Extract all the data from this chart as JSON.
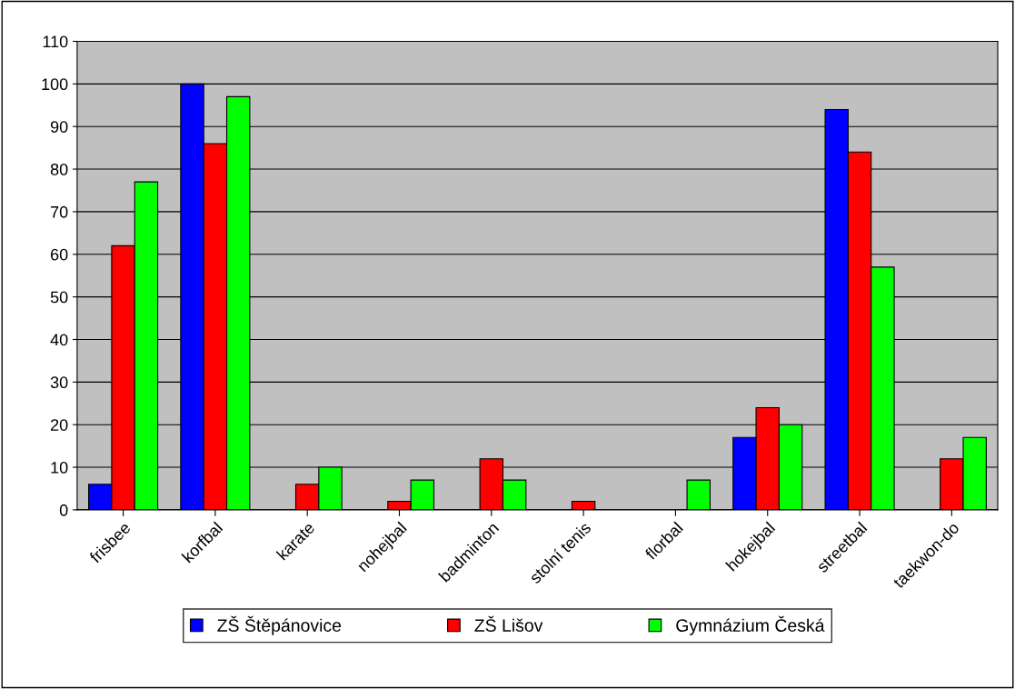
{
  "chart_data": {
    "type": "bar",
    "categories": [
      "frisbee",
      "korfbal",
      "karate",
      "nohejbal",
      "badminton",
      "stolní tenis",
      "florbal",
      "hokejbal",
      "streetbal",
      "taekwon-do"
    ],
    "series": [
      {
        "name": "ZŠ Štěpánovice",
        "color": "#0000ff",
        "values": [
          6,
          100,
          null,
          null,
          null,
          null,
          null,
          17,
          94,
          null
        ]
      },
      {
        "name": "ZŠ Lišov",
        "color": "#ff0000",
        "values": [
          62,
          86,
          6,
          2,
          12,
          2,
          null,
          24,
          84,
          12
        ]
      },
      {
        "name": "Gymnázium Česká",
        "color": "#00ff00",
        "values": [
          77,
          97,
          10,
          7,
          7,
          null,
          7,
          20,
          57,
          17
        ]
      }
    ],
    "ylim": [
      0,
      110
    ],
    "yticks": [
      0,
      10,
      20,
      30,
      40,
      50,
      60,
      70,
      80,
      90,
      100,
      110
    ],
    "grid": "y",
    "legend": "bottom"
  }
}
